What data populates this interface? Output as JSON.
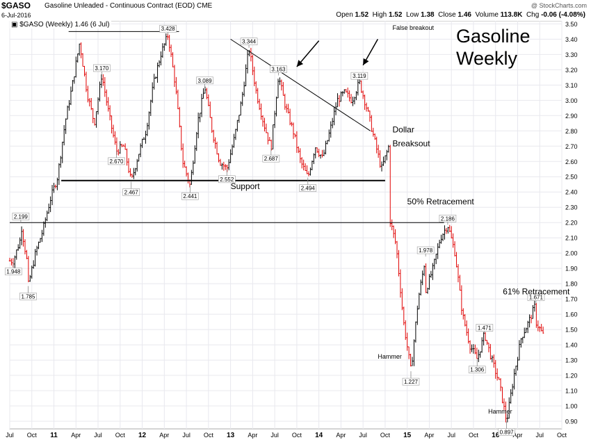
{
  "header": {
    "symbol": "$GASO",
    "description": "Gasoline Unleaded - Continuous Contract (EOD)",
    "exchange": "CME",
    "date": "6-Jul-2016",
    "brand": "@ StockCharts.com",
    "open_label": "Open",
    "open": "1.52",
    "high_label": "High",
    "high": "1.52",
    "low_label": "Low",
    "low": "1.38",
    "close_label": "Close",
    "close": "1.46",
    "volume_label": "Volume",
    "volume": "113.8K",
    "chg_label": "Chg",
    "chg": "-0.06 (-4.08%)"
  },
  "legend": "$GASO (Weekly) 1.46 (6 Jul)",
  "big_title_line1": "Gasoline",
  "big_title_line2": "Weekly",
  "colors": {
    "up": "#000000",
    "down": "#e00000",
    "grid": "#e8e8ee",
    "line": "#000000"
  },
  "chart_data": {
    "type": "ohlc",
    "timeframe": "Weekly",
    "x_range": [
      "2010-07",
      "2016-10"
    ],
    "x_ticks": [
      "Jul",
      "Oct",
      "11",
      "Apr",
      "Jul",
      "Oct",
      "12",
      "Apr",
      "Jul",
      "Oct",
      "13",
      "Apr",
      "Jul",
      "Oct",
      "14",
      "Apr",
      "Jul",
      "Oct",
      "15",
      "Apr",
      "Jul",
      "Oct",
      "16",
      "Apr",
      "Jul",
      "Oct"
    ],
    "y_range": [
      0.85,
      3.52
    ],
    "y_ticks": [
      "3.50",
      "3.40",
      "3.30",
      "3.20",
      "3.10",
      "3.00",
      "2.90",
      "2.80",
      "2.70",
      "2.60",
      "2.50",
      "2.40",
      "2.30",
      "2.20",
      "2.10",
      "2.00",
      "1.90",
      "1.80",
      "1.70",
      "1.60",
      "1.50",
      "1.40",
      "1.30",
      "1.20",
      "1.10",
      "1.00",
      "0.90"
    ],
    "grid": true,
    "price_path": [
      [
        "2010-07",
        1.95
      ],
      [
        "2010-08",
        2.1
      ],
      [
        "2010-08",
        2.199
      ],
      [
        "2010-09",
        1.9
      ],
      [
        "2010-09",
        1.785
      ],
      [
        "2010-10",
        2.0
      ],
      [
        "2010-11",
        2.15
      ],
      [
        "2010-12",
        2.35
      ],
      [
        "2011-01",
        2.5
      ],
      [
        "2011-02",
        2.85
      ],
      [
        "2011-03",
        3.1
      ],
      [
        "2011-04",
        3.38
      ],
      [
        "2011-05",
        3.05
      ],
      [
        "2011-06",
        2.85
      ],
      [
        "2011-07",
        3.17
      ],
      [
        "2011-08",
        2.9
      ],
      [
        "2011-09",
        2.67
      ],
      [
        "2011-10",
        2.7
      ],
      [
        "2011-11",
        2.467
      ],
      [
        "2011-12",
        2.65
      ],
      [
        "2012-01",
        2.8
      ],
      [
        "2012-02",
        3.1
      ],
      [
        "2012-03",
        3.3
      ],
      [
        "2012-04",
        3.428
      ],
      [
        "2012-05",
        3.1
      ],
      [
        "2012-06",
        2.6
      ],
      [
        "2012-07",
        2.441
      ],
      [
        "2012-08",
        2.85
      ],
      [
        "2012-09",
        3.089
      ],
      [
        "2012-10",
        2.8
      ],
      [
        "2012-11",
        2.6
      ],
      [
        "2012-12",
        2.552
      ],
      [
        "2013-01",
        2.75
      ],
      [
        "2013-02",
        3.0
      ],
      [
        "2013-03",
        3.344
      ],
      [
        "2013-04",
        3.05
      ],
      [
        "2013-05",
        2.85
      ],
      [
        "2013-06",
        2.687
      ],
      [
        "2013-07",
        3.163
      ],
      [
        "2013-08",
        2.95
      ],
      [
        "2013-09",
        2.8
      ],
      [
        "2013-10",
        2.6
      ],
      [
        "2013-11",
        2.494
      ],
      [
        "2013-12",
        2.7
      ],
      [
        "2014-01",
        2.62
      ],
      [
        "2014-02",
        2.8
      ],
      [
        "2014-03",
        3.0
      ],
      [
        "2014-04",
        3.05
      ],
      [
        "2014-05",
        3.0
      ],
      [
        "2014-06",
        3.119
      ],
      [
        "2014-07",
        2.95
      ],
      [
        "2014-08",
        2.75
      ],
      [
        "2014-09",
        2.55
      ],
      [
        "2014-10",
        2.7
      ],
      [
        "2014-10",
        2.25
      ],
      [
        "2014-11",
        2.05
      ],
      [
        "2014-12",
        1.55
      ],
      [
        "2015-01",
        1.227
      ],
      [
        "2015-02",
        1.7
      ],
      [
        "2015-03",
        1.978
      ],
      [
        "2015-03",
        1.75
      ],
      [
        "2015-04",
        1.9
      ],
      [
        "2015-05",
        2.1
      ],
      [
        "2015-06",
        2.186
      ],
      [
        "2015-07",
        2.0
      ],
      [
        "2015-08",
        1.6
      ],
      [
        "2015-09",
        1.4
      ],
      [
        "2015-10",
        1.306
      ],
      [
        "2015-11",
        1.471
      ],
      [
        "2015-12",
        1.3
      ],
      [
        "2016-01",
        1.15
      ],
      [
        "2016-02",
        0.897
      ],
      [
        "2016-03",
        1.2
      ],
      [
        "2016-04",
        1.45
      ],
      [
        "2016-05",
        1.55
      ],
      [
        "2016-06",
        1.671
      ],
      [
        "2016-06",
        1.55
      ],
      [
        "2016-07",
        1.46
      ]
    ],
    "price_labels": [
      {
        "x": "2010-08",
        "y": 2.199,
        "text": "2.199"
      },
      {
        "x": "2010-07",
        "y": 1.948,
        "text": "1.948"
      },
      {
        "x": "2010-09",
        "y": 1.785,
        "text": "1.785"
      },
      {
        "x": "2011-07",
        "y": 3.17,
        "text": "3.170"
      },
      {
        "x": "2011-09",
        "y": 2.67,
        "text": "2.670"
      },
      {
        "x": "2011-11",
        "y": 2.467,
        "text": "2.467"
      },
      {
        "x": "2012-04",
        "y": 3.428,
        "text": "3.428"
      },
      {
        "x": "2012-07",
        "y": 2.441,
        "text": "2.441"
      },
      {
        "x": "2012-09",
        "y": 3.089,
        "text": "3.089"
      },
      {
        "x": "2012-12",
        "y": 2.552,
        "text": "2.552"
      },
      {
        "x": "2013-03",
        "y": 3.344,
        "text": "3.344"
      },
      {
        "x": "2013-06",
        "y": 2.687,
        "text": "2.687"
      },
      {
        "x": "2013-07",
        "y": 3.163,
        "text": "3.163"
      },
      {
        "x": "2013-11",
        "y": 2.494,
        "text": "2.494"
      },
      {
        "x": "2014-06",
        "y": 3.119,
        "text": "3.119"
      },
      {
        "x": "2015-01",
        "y": 1.227,
        "text": "1.227"
      },
      {
        "x": "2015-03",
        "y": 1.978,
        "text": "1.978"
      },
      {
        "x": "2015-06",
        "y": 2.186,
        "text": "2.186"
      },
      {
        "x": "2015-10",
        "y": 1.306,
        "text": "1.306"
      },
      {
        "x": "2015-11",
        "y": 1.471,
        "text": "1.471"
      },
      {
        "x": "2016-02",
        "y": 0.897,
        "text": "0.897"
      },
      {
        "x": "2016-06",
        "y": 1.671,
        "text": "1.671"
      }
    ],
    "lines": [
      {
        "name": "support",
        "x1": "2011-02",
        "y1": 2.475,
        "x2": "2014-10",
        "y2": 2.475
      },
      {
        "name": "downtrend",
        "x1": "2013-01",
        "y1": 3.4,
        "x2": "2014-08",
        "y2": 2.8
      },
      {
        "name": "retracement-50",
        "x1": "2010-07",
        "y1": 2.2,
        "x2": "2015-06",
        "y2": 2.2
      },
      {
        "name": "top-resistance",
        "x1": "2011-03",
        "y1": 3.45,
        "x2": "2012-06",
        "y2": 3.45
      }
    ],
    "annotations": [
      {
        "text": "Support",
        "x": "2013-01",
        "y": 2.42
      },
      {
        "text": "False breakout",
        "x": "2014-11",
        "y": 3.46
      },
      {
        "text": "Dollar",
        "x": "2014-11",
        "y": 2.79
      },
      {
        "text": "Breaksout",
        "x": "2014-11",
        "y": 2.7
      },
      {
        "text": "50% Retracement",
        "x": "2015-01",
        "y": 2.32
      },
      {
        "text": "61% Retracement",
        "x": "2016-02",
        "y": 1.73
      },
      {
        "text": "Hammer",
        "x": "2014-09",
        "y": 1.31
      },
      {
        "text": "Hammer",
        "x": "2015-12",
        "y": 0.95
      }
    ],
    "arrows": [
      {
        "from": [
          "2014-01",
          3.39
        ],
        "to": [
          "2013-10",
          3.22
        ]
      },
      {
        "from": [
          "2014-09",
          3.4
        ],
        "to": [
          "2014-07",
          3.23
        ]
      }
    ]
  }
}
